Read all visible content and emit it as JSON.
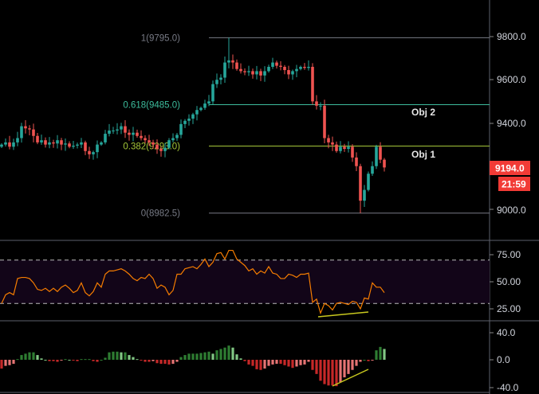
{
  "colors": {
    "up": "#26a69a",
    "down": "#ef5350",
    "rsi": "#f57c00",
    "rsi_band": "#120518",
    "divergence": "#c8c81e",
    "macd_up": "#2e7d32",
    "macd_up_light": "#81c784",
    "macd_down": "#c62828",
    "macd_down_light": "#e57373",
    "badge": "#f23b36",
    "fib_1": "#787b86",
    "fib_0618": "#3dbd9d",
    "fib_0382": "#a4c639",
    "fib_0": "#787b86"
  },
  "price_axis": {
    "ticks": [
      "9800.0",
      "9600.0",
      "9400.0",
      "9000.0"
    ],
    "last_price": "9194.0",
    "countdown": "21:59"
  },
  "fib_levels": [
    {
      "ratio": 1,
      "price": 9795.0,
      "label": "1(9795.0)"
    },
    {
      "ratio": 0.618,
      "price": 9485.0,
      "label": "0.618(9485.0)"
    },
    {
      "ratio": 0.382,
      "price": 9293.0,
      "label": "0.382(9293.0)"
    },
    {
      "ratio": 0,
      "price": 8982.5,
      "label": "0(8982.5)"
    }
  ],
  "objectives": [
    {
      "label": "Obj 2",
      "level": 0.618
    },
    {
      "label": "Obj 1",
      "level": 0.382
    }
  ],
  "rsi_axis": {
    "ticks": [
      "75.00",
      "50.00",
      "25.00"
    ],
    "upper_band": 70,
    "lower_band": 30
  },
  "macd_axis": {
    "ticks": [
      "40.0",
      "0.0",
      "-40.0"
    ]
  },
  "chart_data": [
    {
      "type": "candlestick",
      "ylim": [
        8900,
        9900
      ],
      "close": [
        9300,
        9310,
        9290,
        9310,
        9330,
        9385,
        9375,
        9370,
        9340,
        9310,
        9320,
        9300,
        9310,
        9305,
        9320,
        9300,
        9305,
        9290,
        9295,
        9300,
        9310,
        9270,
        9255,
        9265,
        9300,
        9310,
        9350,
        9365,
        9365,
        9370,
        9385,
        9355,
        9345,
        9355,
        9340,
        9330,
        9320,
        9310,
        9300,
        9280,
        9270,
        9285,
        9320,
        9330,
        9345,
        9395,
        9410,
        9420,
        9440,
        9460,
        9470,
        9490,
        9500,
        9580,
        9600,
        9610,
        9680,
        9690,
        9680,
        9650,
        9640,
        9635,
        9640,
        9625,
        9640,
        9620,
        9640,
        9660,
        9680,
        9665,
        9660,
        9645,
        9625,
        9640,
        9650,
        9660,
        9655,
        9660,
        9500,
        9480,
        9480,
        9330,
        9310,
        9300,
        9270,
        9290,
        9280,
        9290,
        9240,
        9200,
        9040,
        9090,
        9165,
        9200,
        9290,
        9230,
        9194
      ],
      "high": 9795.0,
      "low": 8982.5
    },
    {
      "type": "line",
      "ylim": [
        15,
        85
      ],
      "values": [
        30,
        38,
        40,
        38,
        53,
        54,
        54,
        53,
        49,
        43,
        42,
        44,
        41,
        44,
        41,
        45,
        47,
        44,
        40,
        42,
        49,
        40,
        37,
        41,
        49,
        45,
        57,
        60,
        60,
        61,
        62,
        60,
        57,
        53,
        51,
        54,
        53,
        57,
        53,
        44,
        47,
        45,
        38,
        42,
        57,
        57,
        62,
        63,
        64,
        62,
        66,
        71,
        64,
        68,
        76,
        77,
        71,
        79,
        79,
        71,
        68,
        65,
        60,
        62,
        57,
        60,
        58,
        64,
        58,
        57,
        53,
        53,
        57,
        56,
        54,
        57,
        57,
        58,
        31,
        34,
        21,
        30,
        28,
        24,
        30,
        31,
        30,
        29,
        32,
        31,
        25,
        35,
        34,
        49,
        45,
        45,
        40
      ]
    },
    {
      "type": "bar",
      "ylim": [
        -45,
        50
      ],
      "values": [
        -13,
        -9,
        -8,
        -6,
        1,
        7,
        9,
        11,
        11,
        7,
        2,
        0,
        -2,
        -2,
        -3,
        -1,
        1,
        0,
        -1,
        -2,
        1,
        1,
        1,
        -2,
        -3,
        0,
        3,
        11,
        12,
        12,
        11,
        11,
        7,
        4,
        1,
        -1,
        -3,
        -3,
        -2,
        -5,
        -6,
        -6,
        -7,
        -6,
        -3,
        4,
        7,
        9,
        9,
        9,
        10,
        11,
        12,
        9,
        14,
        16,
        18,
        21,
        18,
        8,
        2,
        -2,
        -7,
        -9,
        -14,
        -15,
        -13,
        -9,
        -7,
        -6,
        -6,
        -8,
        -10,
        -12,
        -10,
        -8,
        -7,
        -3,
        -15,
        -21,
        -31,
        -36,
        -38,
        -38,
        -39,
        -33,
        -26,
        -21,
        -15,
        -9,
        -3,
        0,
        -2,
        -1,
        14,
        19,
        16
      ]
    }
  ]
}
